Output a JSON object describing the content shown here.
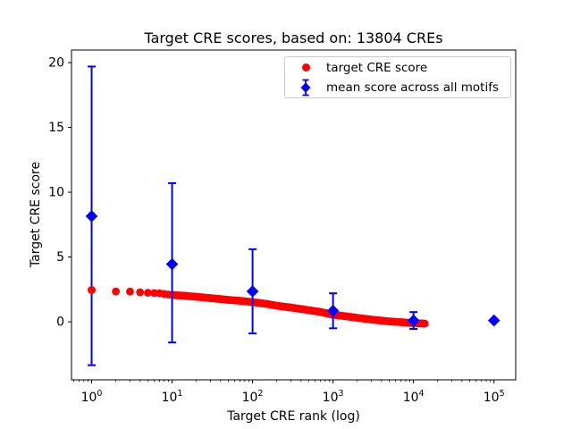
{
  "title": "Target CRE scores, based on: 13804 CREs",
  "xlabel": "Target CRE rank (log)",
  "ylabel": "Target CRE score",
  "legend": {
    "items": [
      {
        "label": "target CRE score",
        "marker": "red-circle",
        "color": "#ff0000"
      },
      {
        "label": "mean score across all motifs",
        "marker": "blue-diamond-errorbar",
        "color": "#0000ff"
      }
    ]
  },
  "chart_data": {
    "type": "scatter",
    "title": "Target CRE scores, based on: 13804 CREs",
    "xlabel": "Target CRE rank (log)",
    "ylabel": "Target CRE score",
    "x_scale": "log",
    "xlim_log10": [
      -0.25,
      5.27
    ],
    "ylim": [
      -4.48,
      20.97
    ],
    "x_major_ticks": [
      1,
      10,
      100,
      1000,
      10000,
      100000
    ],
    "x_tick_base": "10",
    "x_tick_exponents": [
      "0",
      "1",
      "2",
      "3",
      "4",
      "5"
    ],
    "y_ticks": [
      "0",
      "5",
      "10",
      "15",
      "20"
    ],
    "y_tick_values": [
      0,
      5,
      10,
      15,
      20
    ],
    "grid": false,
    "legend_position": "upper right",
    "n_cres": 13804,
    "series": [
      {
        "name": "target CRE score",
        "marker": "circle",
        "color": "#ff0000",
        "n_points": 13804,
        "anchors_rank": [
          1,
          2,
          3,
          4,
          5,
          7,
          10,
          15,
          20,
          30,
          50,
          70,
          100,
          150,
          200,
          300,
          500,
          700,
          1000,
          1500,
          2000,
          3000,
          5000,
          7000,
          10000,
          13804
        ],
        "anchors_score": [
          2.45,
          2.34,
          2.33,
          2.28,
          2.24,
          2.2,
          2.07,
          2.0,
          1.93,
          1.83,
          1.69,
          1.62,
          1.52,
          1.38,
          1.24,
          1.1,
          0.9,
          0.76,
          0.55,
          0.41,
          0.31,
          0.17,
          0.03,
          -0.03,
          -0.1,
          -0.14
        ]
      },
      {
        "name": "mean score across all motifs",
        "marker": "diamond",
        "color": "#0000ff",
        "ranks": [
          1,
          10,
          100,
          1000,
          10000,
          100000
        ],
        "means": [
          8.15,
          4.45,
          2.35,
          0.85,
          0.1,
          0.1
        ],
        "err_low": [
          -3.35,
          -1.6,
          -0.9,
          -0.5,
          -0.55,
          0.1
        ],
        "err_high": [
          19.7,
          10.7,
          5.6,
          2.2,
          0.75,
          0.1
        ]
      }
    ]
  }
}
